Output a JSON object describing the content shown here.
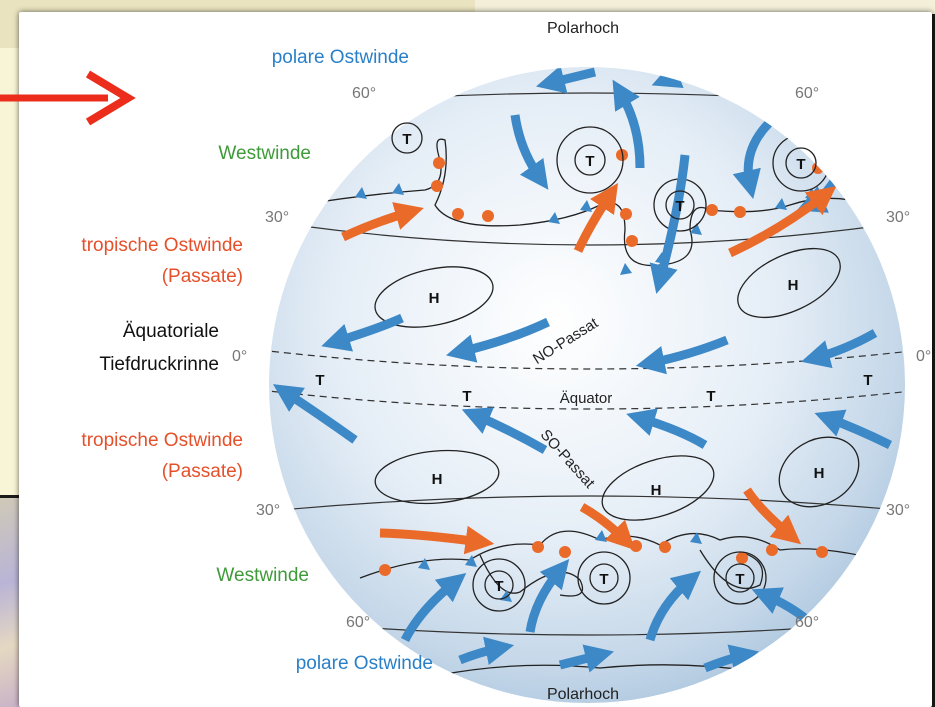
{
  "labels": {
    "polarhoch_top": "Polarhoch",
    "polarhoch_bottom": "Polarhoch",
    "polare_ostwinde_top": "polare Ostwinde",
    "polare_ostwinde_bottom": "polare Ostwinde",
    "westwinde_top": "Westwinde",
    "westwinde_bottom": "Westwinde",
    "tropische_ostwinde_n": "tropische Ostwinde",
    "passate_n": "(Passate)",
    "tropische_ostwinde_s": "tropische Ostwinde",
    "passate_s": "(Passate)",
    "aequatoriale": "Äquatoriale",
    "tiefdruckrinne": "Tiefdruckrinne",
    "aequator": "Äquator",
    "no_passat": "NO-Passat",
    "so_passat": "SO-Passat"
  },
  "latitudes": {
    "n60_left": "60°",
    "n60_right": "60°",
    "n30_left": "30°",
    "n30_right": "30°",
    "eq_left": "0°",
    "eq_right": "0°",
    "s30_left": "30°",
    "s30_right": "30°",
    "s60_left": "60°",
    "s60_right": "60°"
  },
  "pressure": {
    "low": "T",
    "high": "H"
  },
  "colors": {
    "blue_text": "#2a80c8",
    "green_text": "#3f9a3a",
    "orange_text": "#e5502a",
    "blue_arrow": "#3d88c6",
    "orange_arrow": "#ea6a2a",
    "red_arrow": "#ec2d1c"
  }
}
